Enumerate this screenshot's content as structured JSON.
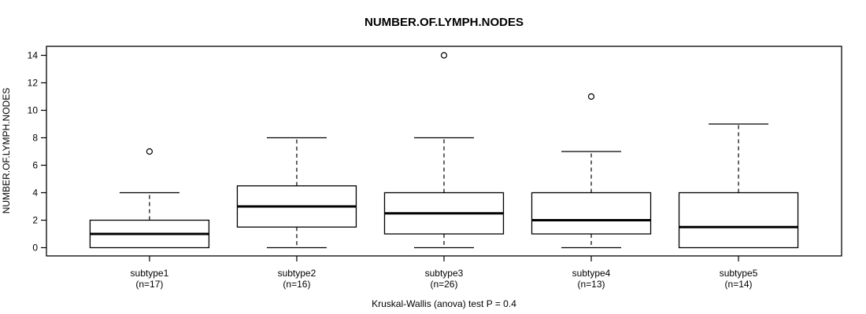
{
  "title": "NUMBER.OF.LYMPH.NODES",
  "caption": "Kruskal-Wallis (anova) test P = 0.4",
  "colors": {
    "line": "#000000",
    "background": "#ffffff",
    "box_fill": "#ffffff"
  },
  "chart_data": {
    "type": "boxplot",
    "title": "NUMBER.OF.LYMPH.NODES",
    "ylabel": "NUMBER.OF.LYMPH.NODES",
    "xlabel": "",
    "caption": "Kruskal-Wallis (anova) test P = 0.4",
    "ylim": [
      0,
      14
    ],
    "y_ticks": [
      0,
      2,
      4,
      6,
      8,
      10,
      12,
      14
    ],
    "grid": false,
    "legend": false,
    "groups": [
      {
        "label": "subtype1",
        "n_label": "(n=17)",
        "n": 17,
        "whisker_low": 0,
        "q1": 0,
        "median": 1,
        "q3": 2,
        "whisker_high": 4,
        "outliers": [
          7
        ]
      },
      {
        "label": "subtype2",
        "n_label": "(n=16)",
        "n": 16,
        "whisker_low": 0,
        "q1": 1.5,
        "median": 3,
        "q3": 4.5,
        "whisker_high": 8,
        "outliers": []
      },
      {
        "label": "subtype3",
        "n_label": "(n=26)",
        "n": 26,
        "whisker_low": 0,
        "q1": 1,
        "median": 2.5,
        "q3": 4,
        "whisker_high": 8,
        "outliers": [
          14
        ]
      },
      {
        "label": "subtype4",
        "n_label": "(n=13)",
        "n": 13,
        "whisker_low": 0,
        "q1": 1,
        "median": 2,
        "q3": 4,
        "whisker_high": 7,
        "outliers": [
          11
        ]
      },
      {
        "label": "subtype5",
        "n_label": "(n=14)",
        "n": 14,
        "whisker_low": 0,
        "q1": 0,
        "median": 1.5,
        "q3": 4,
        "whisker_high": 9,
        "outliers": []
      }
    ]
  }
}
